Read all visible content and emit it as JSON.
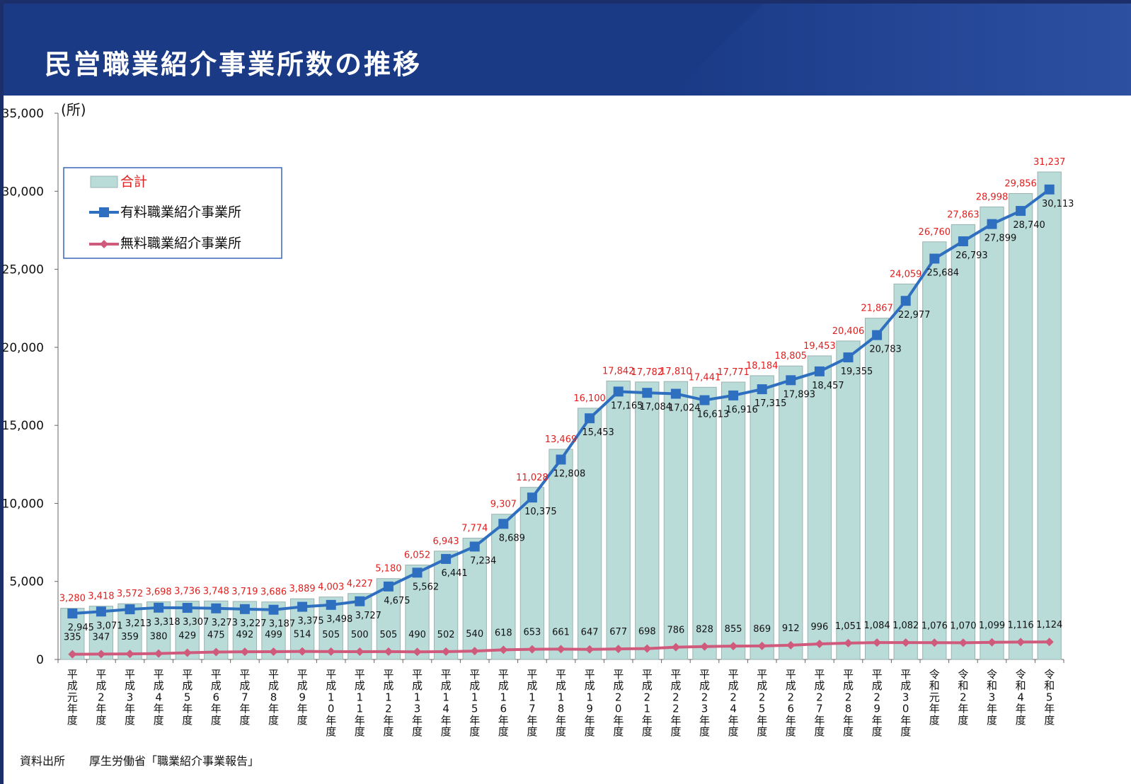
{
  "page": {
    "title": "民営職業紹介事業所数の推移",
    "source_label": "資料出所",
    "source_text": "厚生労働省「職業紹介事業報告」"
  },
  "chart_data": {
    "type": "bar",
    "ylabel": "(所)",
    "ylim": [
      0,
      35000
    ],
    "yticks": [
      "35,000",
      "30,000",
      "25,000",
      "20,000",
      "15,000",
      "10,000",
      "5,000",
      "0"
    ],
    "ytick_values": [
      35000,
      30000,
      25000,
      20000,
      15000,
      10000,
      5000,
      0
    ],
    "legend_position": "top-left",
    "categories": [
      "平成元年度",
      "平成2年度",
      "平成3年度",
      "平成4年度",
      "平成5年度",
      "平成6年度",
      "平成7年度",
      "平成8年度",
      "平成9年度",
      "平成10年度",
      "平成11年度",
      "平成12年度",
      "平成13年度",
      "平成14年度",
      "平成15年度",
      "平成16年度",
      "平成17年度",
      "平成18年度",
      "平成19年度",
      "平成20年度",
      "平成21年度",
      "平成22年度",
      "平成23年度",
      "平成24年度",
      "平成25年度",
      "平成26年度",
      "平成27年度",
      "平成28年度",
      "平成29年度",
      "平成30年度",
      "令和元年度",
      "令和2年度",
      "令和3年度",
      "令和4年度",
      "令和5年度"
    ],
    "series": [
      {
        "name": "合計",
        "type": "bar",
        "color": "#b9dcd9",
        "values": [
          3280,
          3418,
          3572,
          3698,
          3736,
          3748,
          3719,
          3686,
          3889,
          4003,
          4227,
          5180,
          6052,
          6943,
          7774,
          9307,
          11028,
          13469,
          16100,
          17842,
          17782,
          17810,
          17441,
          17771,
          18184,
          18805,
          19453,
          20406,
          21867,
          24059,
          26760,
          27863,
          28998,
          29856,
          31237
        ],
        "labels": [
          "3,280",
          "3,418",
          "3,572",
          "3,698",
          "3,736",
          "3,748",
          "3,719",
          "3,686",
          "3,889",
          "4,003",
          "4,227",
          "5,180",
          "6,052",
          "6,943",
          "7,774",
          "9,307",
          "11,028",
          "13,469",
          "16,100",
          "17,842",
          "17,782",
          "17,810",
          "17,441",
          "17,771",
          "18,184",
          "18,805",
          "19,453",
          "20,406",
          "21,867",
          "24,059",
          "26,760",
          "27,863",
          "28,998",
          "29,856",
          "31,237"
        ]
      },
      {
        "name": "有料職業紹介事業所",
        "type": "line",
        "color": "#2f6fc0",
        "values": [
          2945,
          3071,
          3213,
          3318,
          3307,
          3273,
          3227,
          3187,
          3375,
          3498,
          3727,
          4675,
          5562,
          6441,
          7234,
          8689,
          10375,
          12808,
          15453,
          17165,
          17084,
          17024,
          16613,
          16916,
          17315,
          17893,
          18457,
          19355,
          20783,
          22977,
          25684,
          26793,
          27899,
          28740,
          30113
        ],
        "labels": [
          "2,945",
          "3,071",
          "3,213",
          "3,318",
          "3,307",
          "3,273",
          "3,227",
          "3,187",
          "3,375",
          "3,498",
          "3,727",
          "4,675",
          "5,562",
          "6,441",
          "7,234",
          "8,689",
          "10,375",
          "12,808",
          "15,453",
          "17,165",
          "17,084",
          "17,024",
          "16,613",
          "16,916",
          "17,315",
          "17,893",
          "18,457",
          "19,355",
          "20,783",
          "22,977",
          "25,684",
          "26,793",
          "27,899",
          "28,740",
          "30,113"
        ]
      },
      {
        "name": "無料職業紹介事業所",
        "type": "line",
        "color": "#d05a7c",
        "values": [
          335,
          347,
          359,
          380,
          429,
          475,
          492,
          499,
          514,
          505,
          500,
          505,
          490,
          502,
          540,
          618,
          653,
          661,
          647,
          677,
          698,
          786,
          828,
          855,
          869,
          912,
          996,
          1051,
          1084,
          1082,
          1076,
          1070,
          1099,
          1116,
          1124
        ],
        "labels": [
          "335",
          "347",
          "359",
          "380",
          "429",
          "475",
          "492",
          "499",
          "514",
          "505",
          "500",
          "505",
          "490",
          "502",
          "540",
          "618",
          "653",
          "661",
          "647",
          "677",
          "698",
          "786",
          "828",
          "855",
          "869",
          "912",
          "996",
          "1,051",
          "1,084",
          "1,082",
          "1,076",
          "1,070",
          "1,099",
          "1,116",
          "1,124"
        ]
      }
    ]
  }
}
